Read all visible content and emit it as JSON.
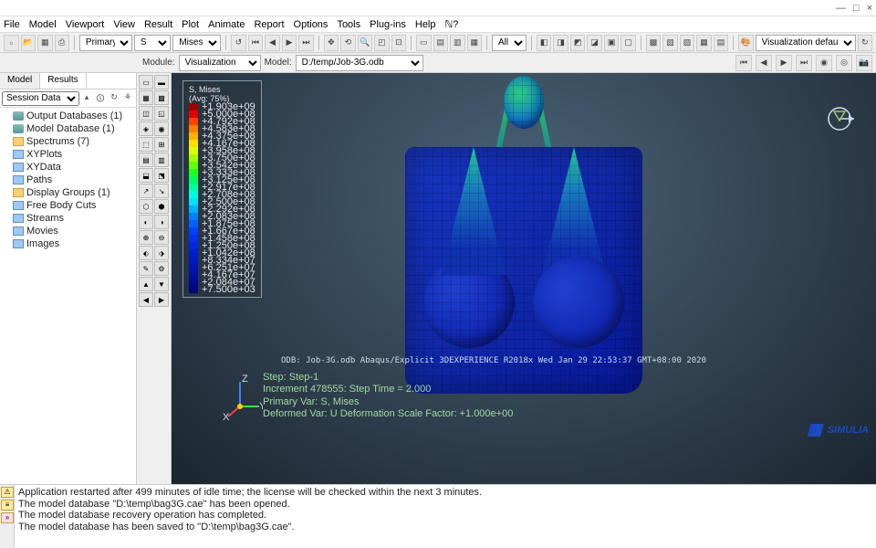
{
  "window": {
    "minimize": "—",
    "maximize": "□",
    "close": "×"
  },
  "menu": [
    "File",
    "Model",
    "Viewport",
    "View",
    "Result",
    "Plot",
    "Animate",
    "Report",
    "Options",
    "Tools",
    "Plug-ins",
    "Help"
  ],
  "toolbar": {
    "primary_label": "Primary",
    "primary_combo": "S",
    "invariant_combo": "Mises",
    "all_label": "All",
    "viz_defaults": "Visualization defaults"
  },
  "context": {
    "module_label": "Module:",
    "module_value": "Visualization",
    "model_label": "Model:",
    "model_value": "D:/temp/Job-3G.odb"
  },
  "tabs": {
    "model": "Model",
    "results": "Results"
  },
  "session": {
    "label": "Session Data"
  },
  "tree": [
    {
      "label": "Output Databases (1)",
      "icon": "ico-db"
    },
    {
      "label": "Model Database (1)",
      "icon": "ico-db"
    },
    {
      "label": "Spectrums (7)",
      "icon": "ico-folder"
    },
    {
      "label": "XYPlots",
      "icon": "ico-item"
    },
    {
      "label": "XYData",
      "icon": "ico-item"
    },
    {
      "label": "Paths",
      "icon": "ico-item"
    },
    {
      "label": "Display Groups (1)",
      "icon": "ico-folder"
    },
    {
      "label": "Free Body Cuts",
      "icon": "ico-item"
    },
    {
      "label": "Streams",
      "icon": "ico-item"
    },
    {
      "label": "Movies",
      "icon": "ico-item"
    },
    {
      "label": "Images",
      "icon": "ico-item"
    }
  ],
  "legend": {
    "title": "S, Mises",
    "avg": "(Avg: 75%)",
    "entries": [
      {
        "c": "#a00000",
        "v": "+1.903e+09"
      },
      {
        "c": "#e00000",
        "v": "+5.000e+08"
      },
      {
        "c": "#ff4000",
        "v": "+4.792e+08"
      },
      {
        "c": "#ff8000",
        "v": "+4.583e+08"
      },
      {
        "c": "#ffb000",
        "v": "+4.375e+08"
      },
      {
        "c": "#ffe000",
        "v": "+4.167e+08"
      },
      {
        "c": "#e0ff00",
        "v": "+3.958e+08"
      },
      {
        "c": "#a0ff00",
        "v": "+3.750e+08"
      },
      {
        "c": "#60ff00",
        "v": "+3.542e+08"
      },
      {
        "c": "#20ff20",
        "v": "+3.333e+08"
      },
      {
        "c": "#00ff60",
        "v": "+3.125e+08"
      },
      {
        "c": "#00ffa0",
        "v": "+2.917e+08"
      },
      {
        "c": "#00ffe0",
        "v": "+2.708e+08"
      },
      {
        "c": "#00e0ff",
        "v": "+2.500e+08"
      },
      {
        "c": "#00b0ff",
        "v": "+2.292e+08"
      },
      {
        "c": "#0080ff",
        "v": "+2.083e+08"
      },
      {
        "c": "#0060ff",
        "v": "+1.875e+08"
      },
      {
        "c": "#0040ff",
        "v": "+1.667e+08"
      },
      {
        "c": "#0030f0",
        "v": "+1.458e+08"
      },
      {
        "c": "#0028e0",
        "v": "+1.250e+08"
      },
      {
        "c": "#0020d0",
        "v": "+1.042e+08"
      },
      {
        "c": "#0018c0",
        "v": "+8.334e+07"
      },
      {
        "c": "#0014b0",
        "v": "+6.251e+07"
      },
      {
        "c": "#0010a0",
        "v": "+4.167e+07"
      },
      {
        "c": "#000c90",
        "v": "+2.084e+07"
      },
      {
        "c": "#000880",
        "v": "+7.500e+03"
      }
    ]
  },
  "odb_line": "ODB: Job-3G.odb    Abaqus/Explicit 3DEXPERIENCE R2018x    Wed Jan 29 22:53:37 GMT+08:00 2020",
  "step_lines": [
    "Step: Step-1",
    "Increment   478555: Step Time =    2.000",
    "Primary Var: S, Mises",
    "Deformed Var: U   Deformation Scale Factor: +1.000e+00"
  ],
  "triad": {
    "x": "X",
    "y": "Y",
    "z": "Z"
  },
  "console": [
    "Application restarted after 499 minutes of idle time; the license will be checked within the next 3 minutes.",
    "The model database \"D:\\temp\\bag3G.cae\" has been opened.",
    "The model database recovery operation has completed.",
    "The model database has been saved to \"D:\\temp\\bag3G.cae\"."
  ],
  "brand": "SIMULIA"
}
